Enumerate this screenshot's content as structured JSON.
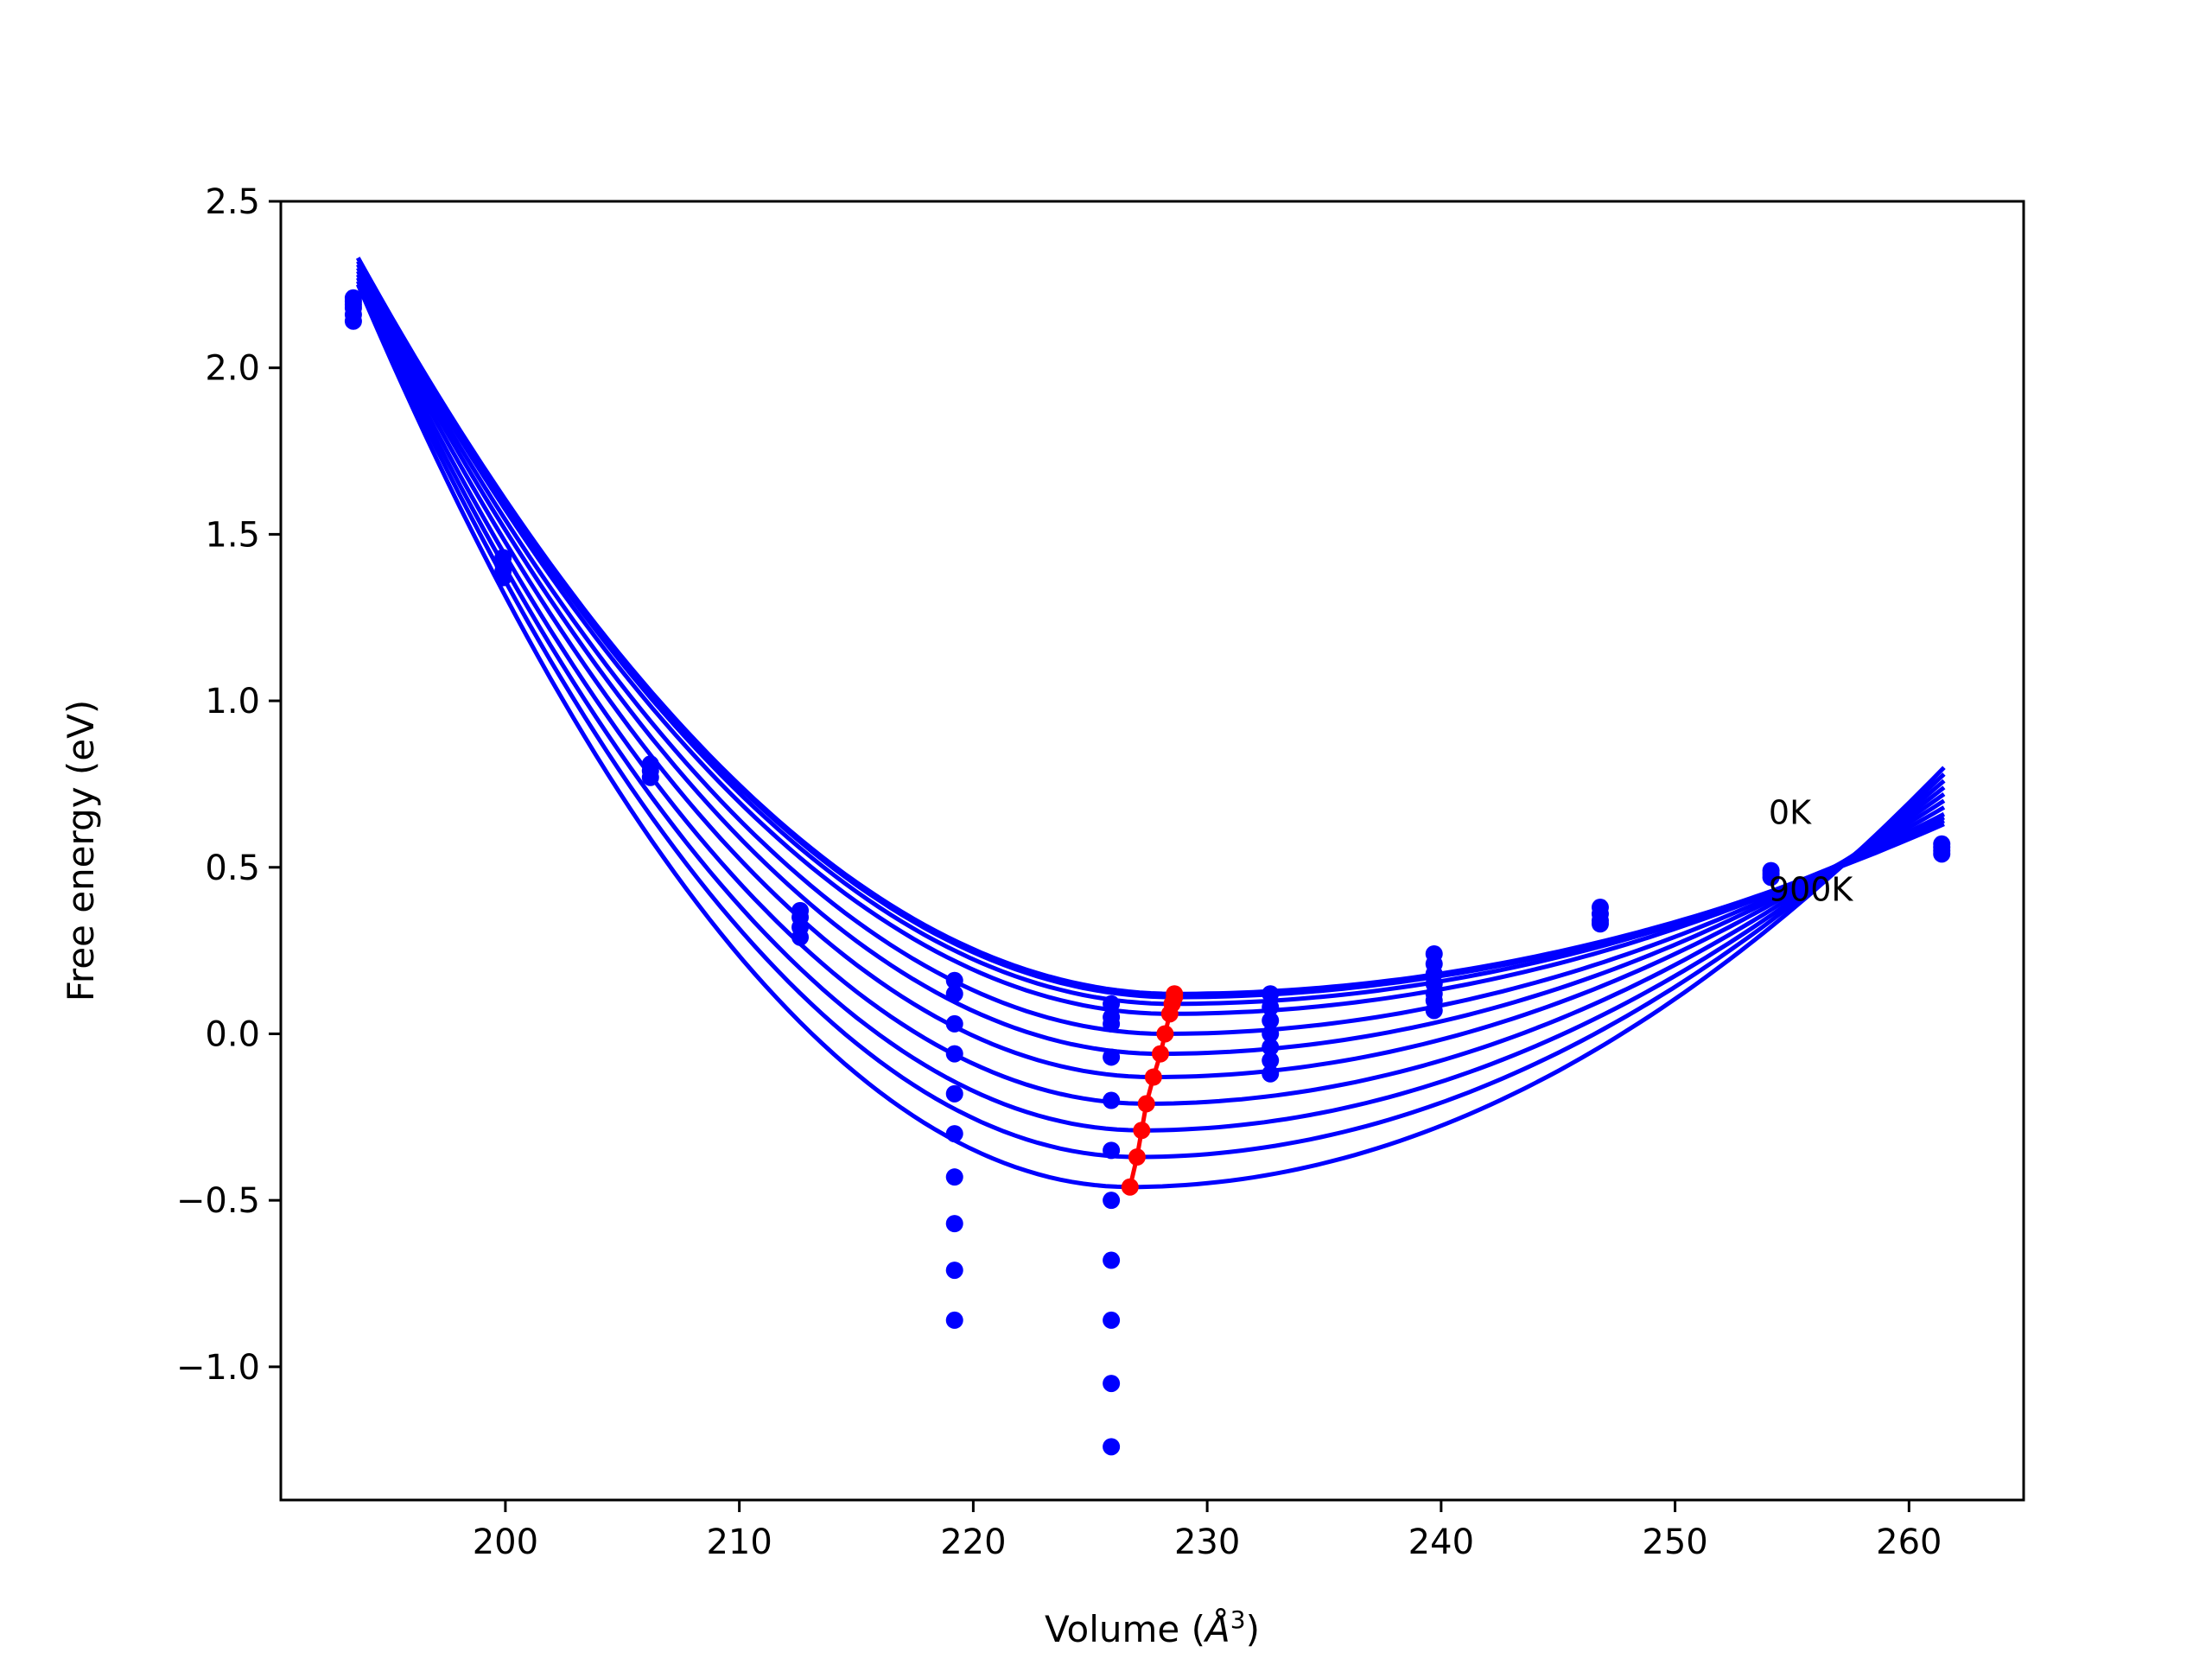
{
  "chart_data": {
    "type": "scatter",
    "title": "",
    "xlabel_prefix": "Volume (",
    "xlabel_unit": "Å",
    "xlabel_exp": "3",
    "xlabel_suffix": ")",
    "ylabel": "Free energy (eV)",
    "xlim": [
      190.4,
      264.9
    ],
    "ylim": [
      -1.4,
      2.5
    ],
    "xticks": [
      200,
      210,
      220,
      230,
      240,
      250,
      260
    ],
    "xtick_labels": [
      "200",
      "210",
      "220",
      "230",
      "240",
      "250",
      "260"
    ],
    "yticks": [
      -1.0,
      -0.5,
      0.0,
      0.5,
      1.0,
      1.5,
      2.0,
      2.5
    ],
    "ytick_labels": [
      "−1.0",
      "−0.5",
      "0.0",
      "0.5",
      "1.0",
      "1.5",
      "2.0",
      "2.5"
    ],
    "grid": false,
    "legend": "none",
    "colors": {
      "curves": "#0000ff",
      "points": "#0000ff",
      "minima": "#ff0000",
      "axes": "#000000"
    },
    "annotations": [
      {
        "text": "0K",
        "x": 254.0,
        "y": 0.63
      },
      {
        "text": "900K",
        "x": 254.0,
        "y": 0.4
      }
    ],
    "curve_x_range": [
      193.7,
      261.5
    ],
    "curves": [
      {
        "vmin": 228.6,
        "fmin": 0.12,
        "f_left": 2.33,
        "f_right": 0.63
      },
      {
        "vmin": 228.6,
        "fmin": 0.11,
        "f_left": 2.33,
        "f_right": 0.64
      },
      {
        "vmin": 228.5,
        "fmin": 0.09,
        "f_left": 2.33,
        "f_right": 0.65
      },
      {
        "vmin": 228.4,
        "fmin": 0.06,
        "f_left": 2.32,
        "f_right": 0.66
      },
      {
        "vmin": 228.2,
        "fmin": 0.0,
        "f_left": 2.31,
        "f_right": 0.68
      },
      {
        "vmin": 228.0,
        "fmin": -0.06,
        "f_left": 2.3,
        "f_right": 0.7
      },
      {
        "vmin": 227.7,
        "fmin": -0.13,
        "f_left": 2.29,
        "f_right": 0.72
      },
      {
        "vmin": 227.4,
        "fmin": -0.21,
        "f_left": 2.28,
        "f_right": 0.74
      },
      {
        "vmin": 227.2,
        "fmin": -0.29,
        "f_left": 2.27,
        "f_right": 0.76
      },
      {
        "vmin": 227.0,
        "fmin": -0.37,
        "f_left": 2.26,
        "f_right": 0.78
      },
      {
        "vmin": 226.7,
        "fmin": -0.46,
        "f_left": 2.25,
        "f_right": 0.8
      }
    ],
    "minima": [
      {
        "x": 228.6,
        "y": 0.12
      },
      {
        "x": 228.6,
        "y": 0.11
      },
      {
        "x": 228.5,
        "y": 0.09
      },
      {
        "x": 228.4,
        "y": 0.06
      },
      {
        "x": 228.2,
        "y": 0.0
      },
      {
        "x": 228.0,
        "y": -0.06
      },
      {
        "x": 227.7,
        "y": -0.13
      },
      {
        "x": 227.4,
        "y": -0.21
      },
      {
        "x": 227.2,
        "y": -0.29
      },
      {
        "x": 227.0,
        "y": -0.37
      },
      {
        "x": 226.7,
        "y": -0.46
      }
    ],
    "points": [
      {
        "x": 193.5,
        "ys": [
          2.14,
          2.16,
          2.18,
          2.19,
          2.2,
          2.21
        ]
      },
      {
        "x": 199.9,
        "ys": [
          1.37,
          1.39,
          1.41,
          1.43
        ]
      },
      {
        "x": 206.2,
        "ys": [
          0.77,
          0.79,
          0.81
        ]
      },
      {
        "x": 212.6,
        "ys": [
          0.29,
          0.32,
          0.35,
          0.37
        ]
      },
      {
        "x": 219.2,
        "ys": [
          0.16,
          0.12,
          0.03,
          -0.06,
          -0.18,
          -0.3,
          -0.43,
          -0.57,
          -0.71,
          -0.86
        ]
      },
      {
        "x": 225.9,
        "ys": [
          0.09,
          0.05,
          0.03,
          -0.07,
          -0.2,
          -0.35,
          -0.5,
          -0.68,
          -0.86,
          -1.05,
          -1.24
        ]
      },
      {
        "x": 232.7,
        "ys": [
          0.12,
          0.08,
          0.04,
          0.0,
          -0.04,
          -0.08,
          -0.12
        ]
      },
      {
        "x": 239.7,
        "ys": [
          0.24,
          0.21,
          0.18,
          0.15,
          0.12,
          0.1,
          0.07
        ]
      },
      {
        "x": 246.8,
        "ys": [
          0.38,
          0.36,
          0.34,
          0.33
        ]
      },
      {
        "x": 254.1,
        "ys": [
          0.49,
          0.48,
          0.47
        ]
      },
      {
        "x": 261.4,
        "ys": [
          0.57,
          0.56,
          0.55,
          0.54
        ]
      }
    ]
  }
}
